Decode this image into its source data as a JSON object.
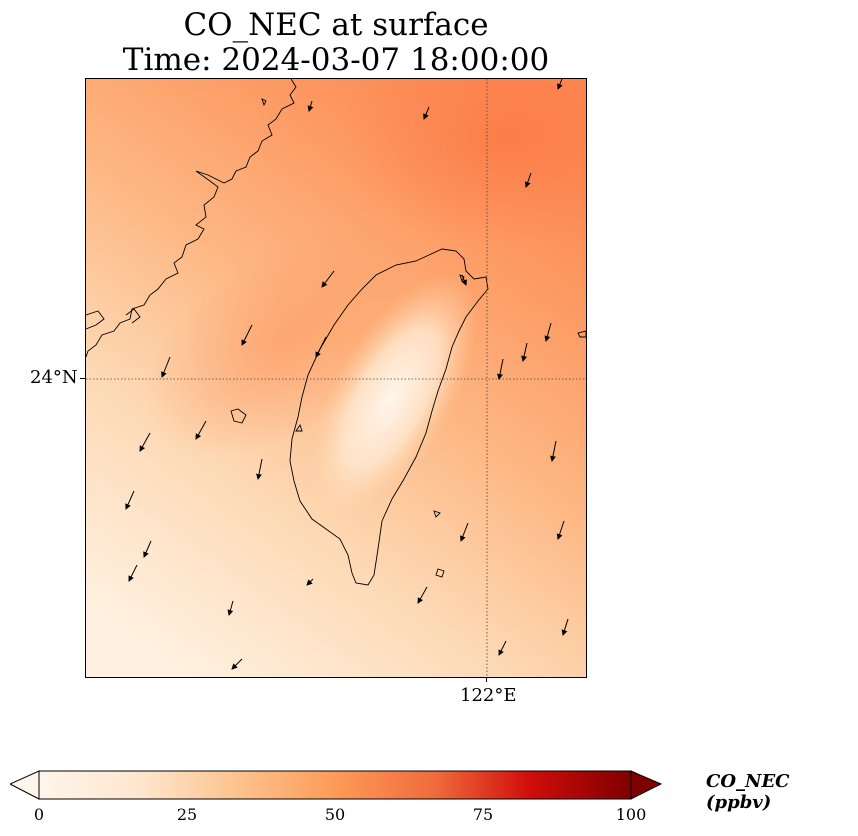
{
  "title": {
    "line1": "CO_NEC at surface",
    "line2": "Time: 2024-03-07 18:00:00"
  },
  "map": {
    "lat_gridline_label": "24°N",
    "lon_gridline_label": "122°E",
    "gridlines": "dotted",
    "features": [
      "coastline",
      "wind-vectors",
      "concentration-field"
    ]
  },
  "colorbar": {
    "label": "CO_NEC (ppbv)",
    "ticks": [
      "0",
      "25",
      "50",
      "75",
      "100"
    ],
    "range": [
      0,
      100
    ],
    "extend": "both",
    "colormap": [
      "#fff5eb",
      "#fdd0a2",
      "#fdae6b",
      "#fd8d3c",
      "#e6550d",
      "#a63603",
      "#7f0000"
    ]
  }
}
